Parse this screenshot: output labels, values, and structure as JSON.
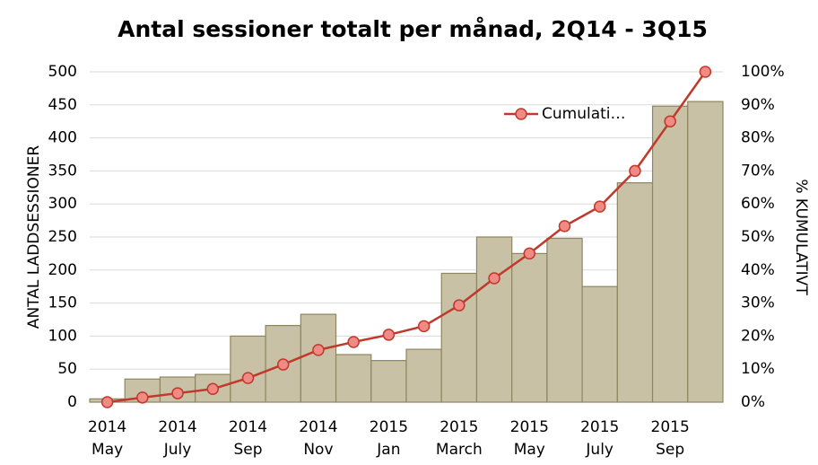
{
  "chart_data": {
    "type": "bar",
    "title": "Antal sessioner totalt per månad, 2Q14 - 3Q15",
    "y_label": "ANTAL LADDSESSIONER",
    "y2_label": "% KUMULATIVT",
    "categories": [
      [
        "2014",
        "May"
      ],
      null,
      [
        "2014",
        "July"
      ],
      null,
      [
        "2014",
        "Sep"
      ],
      null,
      [
        "2014",
        "Nov"
      ],
      null,
      [
        "2015",
        "Jan"
      ],
      null,
      [
        "2015",
        "March"
      ],
      null,
      [
        "2015",
        "May"
      ],
      null,
      [
        "2015",
        "July"
      ],
      null,
      [
        "2015",
        "Sep"
      ],
      null
    ],
    "series": [
      {
        "color": "#c8c1a6",
        "values": [
          5,
          35,
          38,
          42,
          100,
          116,
          133,
          72,
          63,
          80,
          195,
          250,
          225,
          248,
          175,
          332,
          448,
          455
        ]
      },
      {
        "name": "Cumulati…",
        "color": "#c0392b",
        "axis": "y2",
        "values": [
          0,
          1.4,
          2.7,
          4,
          7.3,
          11.4,
          15.8,
          18.2,
          20.4,
          23,
          29.3,
          37.5,
          45,
          53.3,
          59.2,
          70,
          85,
          100
        ]
      }
    ],
    "ylim": [
      0,
      500
    ],
    "yticks": [
      0,
      50,
      100,
      150,
      200,
      250,
      300,
      350,
      400,
      450,
      500
    ],
    "y2lim": [
      0,
      100
    ],
    "y2ticks": [
      {
        "value": 0,
        "label": "0%"
      },
      {
        "value": 10,
        "label": "10%"
      },
      {
        "value": 20,
        "label": "20%"
      },
      {
        "value": 30,
        "label": "30%"
      },
      {
        "value": 40,
        "label": "40%"
      },
      {
        "value": 50,
        "label": "50%"
      },
      {
        "value": 60,
        "label": "60%"
      },
      {
        "value": 70,
        "label": "70%"
      },
      {
        "value": 80,
        "label": "80%"
      },
      {
        "value": 90,
        "label": "90%"
      },
      {
        "value": 100,
        "label": "100%"
      }
    ],
    "grid": true,
    "legend": "top-right"
  }
}
